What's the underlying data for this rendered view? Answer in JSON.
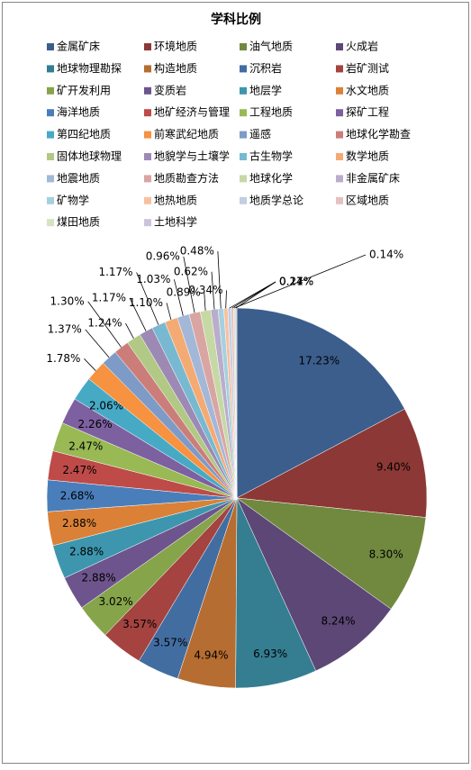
{
  "chart_data": {
    "type": "pie",
    "title": "学科比例",
    "categories": [
      "金属矿床",
      "环境地质",
      "油气地质",
      "火成岩",
      "地球物理勘探",
      "构造地质",
      "沉积岩",
      "岩矿测试",
      "矿开发利用",
      "变质岩",
      "地层学",
      "水文地质",
      "海洋地质",
      "地矿经济与管理",
      "工程地质",
      "探矿工程",
      "第四纪地质",
      "前寒武纪地质",
      "遥感",
      "地球化学勘查",
      "固体地球物理",
      "地貌学与土壤学",
      "古生物学",
      "数学地质",
      "地震地质",
      "地质勘查方法",
      "地球化学",
      "非金属矿床",
      "矿物学",
      "地热地质",
      "地质学总论",
      "区域地质",
      "煤田地质",
      "土地科学"
    ],
    "values": [
      17.23,
      9.4,
      8.3,
      8.24,
      6.93,
      4.94,
      3.57,
      3.57,
      3.02,
      2.88,
      2.88,
      2.88,
      2.68,
      2.47,
      2.47,
      2.26,
      2.06,
      1.78,
      1.37,
      1.3,
      1.24,
      1.17,
      1.17,
      1.1,
      1.03,
      0.96,
      0.89,
      0.62,
      0.48,
      0.34,
      0.27,
      0.21,
      0.14,
      0.14
    ],
    "value_labels": [
      "17.23%",
      "9.40%",
      "8.30%",
      "8.24%",
      "6.93%",
      "4.94%",
      "3.57%",
      "3.57%",
      "3.02%",
      "2.88%",
      "2.88%",
      "2.88%",
      "2.68%",
      "2.47%",
      "2.47%",
      "2.26%",
      "2.06%",
      "1.78%",
      "1.37%",
      "1.30%",
      "1.24%",
      "1.17%",
      "1.17%",
      "1.10%",
      "1.03%",
      "0.96%",
      "0.89%",
      "0.62%",
      "0.48%",
      "0.34%",
      "0.27%",
      "0.21%",
      "0.14%",
      "0.14%"
    ],
    "colors": [
      "#3B5E8C",
      "#8C3836",
      "#71893F",
      "#5C4776",
      "#357D91",
      "#B66D31",
      "#426DA1",
      "#A44340",
      "#86A44A",
      "#6E548D",
      "#3D96AE",
      "#DA8137",
      "#4A7EBB",
      "#BE4B48",
      "#98B954",
      "#7D60A0",
      "#46AAC5",
      "#F69240",
      "#7E9BC8",
      "#CB7E79",
      "#B1C984",
      "#9D8AB4",
      "#78B9D1",
      "#F4AA73",
      "#A3B8D9",
      "#D9A5A3",
      "#C6D9A5",
      "#BAADCC",
      "#A5D0E0",
      "#F8C19E",
      "#C1CEE3",
      "#E5C1C0",
      "#D6E3C1",
      "#CCC3DA"
    ],
    "legend_position": "top"
  }
}
